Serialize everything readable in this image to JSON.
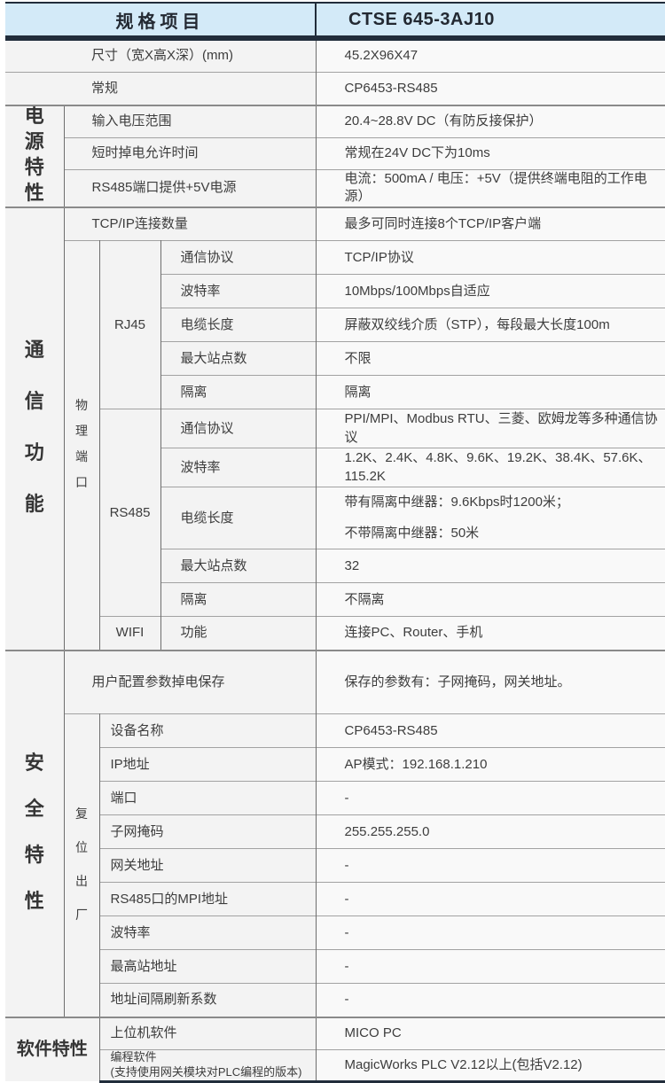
{
  "colors": {
    "header_bg": "#d3eaf8",
    "dark_bar": "#212d3b",
    "cell_label_bg": "#f3f3f3",
    "cell_value_bg": "#f9f9f9",
    "text": "#3d3d3d"
  },
  "header": {
    "left": "规格项目",
    "right": "CTSE 645-3AJ10"
  },
  "general": {
    "size": {
      "label": "尺寸（宽X高X深）(mm)",
      "value": "45.2X96X47"
    },
    "normal": {
      "label": "常规",
      "value": "CP6453-RS485"
    }
  },
  "power": {
    "label": "电源特性",
    "rows": [
      {
        "label": "输入电压范围",
        "value": "20.4~28.8V DC（有防反接保护）"
      },
      {
        "label": "短时掉电允许时间",
        "value": "常规在24V DC下为10ms"
      },
      {
        "label": "RS485端口提供+5V电源",
        "value": "电流：500mA / 电压：+5V（提供终端电阻的工作电源）"
      }
    ]
  },
  "comm": {
    "label": "通信功能",
    "tcp": {
      "label": "TCP/IP连接数量",
      "value": "最多可同时连接8个TCP/IP客户端"
    },
    "physical_label": "物理端口",
    "rj45": {
      "label": "RJ45",
      "rows": [
        {
          "label": "通信协议",
          "value": "TCP/IP协议"
        },
        {
          "label": "波特率",
          "value": "10Mbps/100Mbps自适应"
        },
        {
          "label": "电缆长度",
          "value": "屏蔽双绞线介质（STP），每段最大长度100m"
        },
        {
          "label": "最大站点数",
          "value": "不限"
        },
        {
          "label": "隔离",
          "value": "隔离"
        }
      ]
    },
    "rs485": {
      "label": "RS485",
      "rows": [
        {
          "label": "通信协议",
          "value": "PPI/MPI、Modbus RTU、三菱、欧姆龙等多种通信协议"
        },
        {
          "label": "波特率",
          "value": "1.2K、2.4K、4.8K、9.6K、19.2K、38.4K、57.6K、115.2K"
        },
        {
          "label": "电缆长度",
          "value": "带有隔离中继器：9.6Kbps时1200米；",
          "value2": "不带隔离中继器：50米"
        },
        {
          "label": "最大站点数",
          "value": "32"
        },
        {
          "label": "隔离",
          "value": "不隔离"
        }
      ]
    },
    "wifi": {
      "label": "WIFI",
      "row": {
        "label": "功能",
        "value": "连接PC、Router、手机"
      }
    }
  },
  "security": {
    "label": "安全特性",
    "save": {
      "label": "用户配置参数掉电保存",
      "value": "保存的参数有：子网掩码，网关地址。"
    },
    "reset_label": "复位出厂",
    "rows": [
      {
        "label": "设备名称",
        "value": "CP6453-RS485"
      },
      {
        "label": "IP地址",
        "value": "AP模式：192.168.1.210"
      },
      {
        "label": "端口",
        "value": "-"
      },
      {
        "label": "子网掩码",
        "value": "255.255.255.0"
      },
      {
        "label": "网关地址",
        "value": "-"
      },
      {
        "label": "RS485口的MPI地址",
        "value": "-"
      },
      {
        "label": "波特率",
        "value": "-"
      },
      {
        "label": "最高站地址",
        "value": "-"
      },
      {
        "label": "地址间隔刷新系数",
        "value": "-"
      }
    ]
  },
  "software": {
    "label": "软件特性",
    "rows": [
      {
        "label": "上位机软件",
        "value": "MICO PC"
      },
      {
        "label": "编程软件",
        "label2": "(支持使用网关模块对PLC编程的版本)",
        "value": "MagicWorks PLC V2.12以上(包括V2.12)"
      }
    ]
  }
}
